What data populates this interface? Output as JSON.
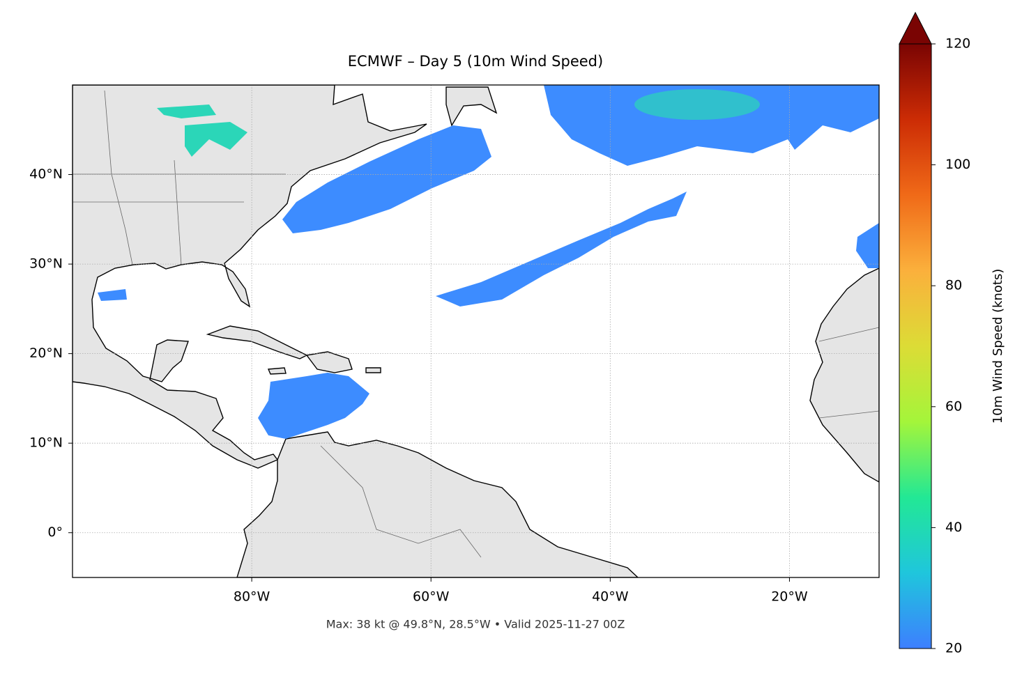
{
  "chart_data": {
    "type": "map",
    "title": "ECMWF – Day 5 (10m Wind Speed)",
    "footnote": "Max: 38 kt @ 49.8°N, 28.5°W • Valid 2025-11-27 00Z",
    "xlim": [
      -100,
      -10
    ],
    "ylim": [
      -5,
      50
    ],
    "xticks": [
      {
        "value": -80,
        "label": "80°W"
      },
      {
        "value": -60,
        "label": "60°W"
      },
      {
        "value": -40,
        "label": "40°W"
      },
      {
        "value": -20,
        "label": "20°W"
      }
    ],
    "yticks": [
      {
        "value": 0,
        "label": "0°"
      },
      {
        "value": 10,
        "label": "10°N"
      },
      {
        "value": 20,
        "label": "20°N"
      },
      {
        "value": 30,
        "label": "30°N"
      },
      {
        "value": 40,
        "label": "40°N"
      }
    ],
    "grid": true,
    "colorbar": {
      "label": "10m Wind Speed (knots)",
      "lim": [
        20,
        120
      ],
      "ticks": [
        20,
        40,
        60,
        80,
        100,
        120
      ],
      "colors": [
        "#3d7fff",
        "#1fc6dc",
        "#22e895",
        "#a4f53a",
        "#dcdc36",
        "#fbb03c",
        "#f06a18",
        "#cc2c05",
        "#7a0403"
      ],
      "extend": "max"
    }
  }
}
